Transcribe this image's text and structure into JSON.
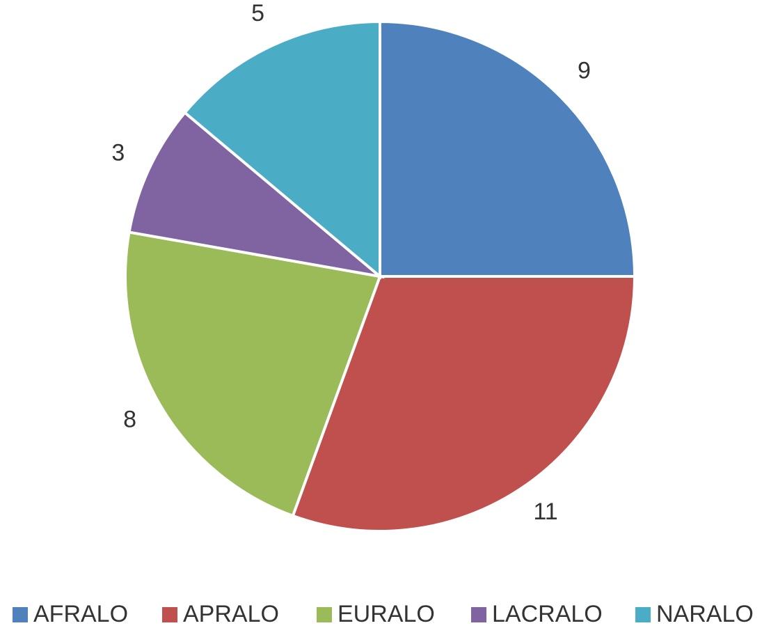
{
  "chart_data": {
    "type": "pie",
    "categories": [
      "AFRALO",
      "APRALO",
      "EURALO",
      "LACRALO",
      "NARALO"
    ],
    "values": [
      9,
      11,
      8,
      3,
      5
    ],
    "colors": [
      "#4f81bd",
      "#c0504d",
      "#9bbb59",
      "#8064a2",
      "#4bacc6"
    ],
    "legend": "bottom"
  }
}
